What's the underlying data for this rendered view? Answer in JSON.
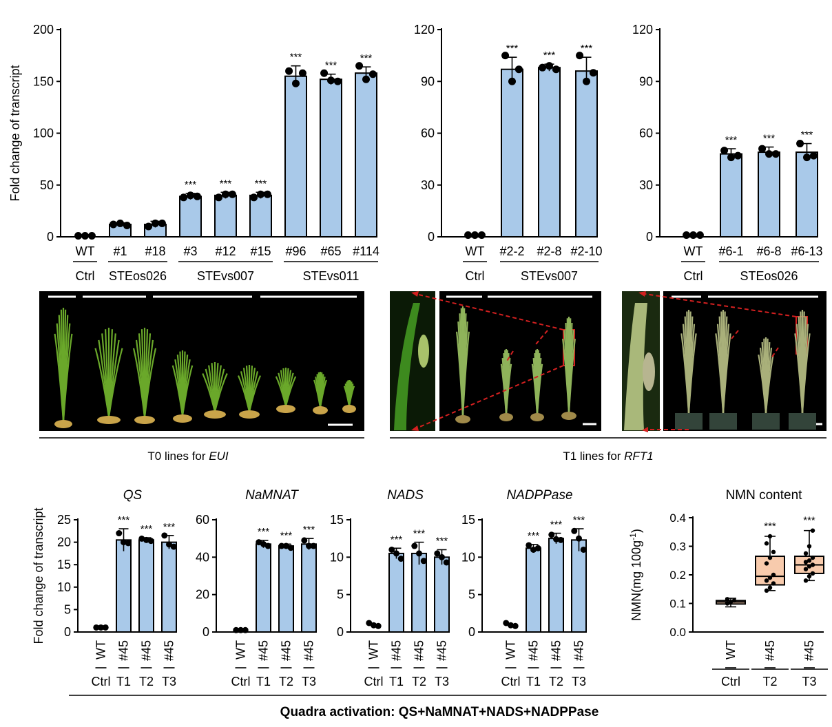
{
  "colors": {
    "bar_fill": "#a9c9e9",
    "box_fill": "#f8cbad",
    "footer_text": "#c00000",
    "scale_bar": "#ffffff",
    "arrow": "#d42020"
  },
  "chart_data": [
    {
      "id": "eui",
      "type": "bar",
      "title": "",
      "ylabel": "Fold change of transcript",
      "ylim": [
        0,
        200
      ],
      "yticks": [
        0,
        50,
        100,
        150,
        200
      ],
      "categories": [
        "WT",
        "#1",
        "#18",
        "#3",
        "#12",
        "#15",
        "#96",
        "#65",
        "#114"
      ],
      "values": [
        1,
        12,
        12,
        39,
        40,
        40,
        155,
        152,
        158
      ],
      "errors": [
        0.5,
        1.5,
        3,
        3,
        3,
        3,
        10,
        5,
        6
      ],
      "points": [
        [
          1,
          1,
          1
        ],
        [
          12,
          13,
          11
        ],
        [
          10,
          13,
          13
        ],
        [
          38,
          40,
          39
        ],
        [
          38,
          41,
          41
        ],
        [
          38,
          41,
          41
        ],
        [
          160,
          148,
          158
        ],
        [
          158,
          151,
          150
        ],
        [
          165,
          152,
          157
        ]
      ],
      "significance": [
        "",
        "",
        "",
        "***",
        "***",
        "***",
        "***",
        "***",
        "***"
      ],
      "groups": [
        {
          "label": "Ctrl",
          "span": [
            0,
            0
          ]
        },
        {
          "label": "STEos026",
          "span": [
            1,
            2
          ]
        },
        {
          "label": "STEvs007",
          "span": [
            3,
            5
          ]
        },
        {
          "label": "STEvs011",
          "span": [
            6,
            8
          ]
        }
      ]
    },
    {
      "id": "rft1-vs007",
      "type": "bar",
      "title": "",
      "ylabel": "",
      "ylim": [
        0,
        120
      ],
      "yticks": [
        0,
        30,
        60,
        90,
        120
      ],
      "categories": [
        "WT",
        "#2-2",
        "#2-8",
        "#2-10"
      ],
      "values": [
        1,
        97,
        98,
        96
      ],
      "errors": [
        0.5,
        7,
        2,
        8
      ],
      "points": [
        [
          1,
          1,
          1
        ],
        [
          105,
          90,
          97
        ],
        [
          98,
          99,
          97
        ],
        [
          105,
          90,
          95
        ]
      ],
      "significance": [
        "",
        "***",
        "***",
        "***"
      ],
      "groups": [
        {
          "label": "Ctrl",
          "span": [
            0,
            0
          ]
        },
        {
          "label": "STEvs007",
          "span": [
            1,
            3
          ]
        }
      ]
    },
    {
      "id": "rft1-os026",
      "type": "bar",
      "title": "",
      "ylabel": "",
      "ylim": [
        0,
        120
      ],
      "yticks": [
        0,
        30,
        60,
        90,
        120
      ],
      "categories": [
        "WT",
        "#6-1",
        "#6-8",
        "#6-13"
      ],
      "values": [
        1,
        48,
        49,
        49
      ],
      "errors": [
        0.5,
        3,
        3,
        5
      ],
      "points": [
        [
          1,
          1,
          1
        ],
        [
          50,
          46,
          47
        ],
        [
          51,
          48,
          48
        ],
        [
          54,
          46,
          47
        ]
      ],
      "significance": [
        "",
        "***",
        "***",
        "***"
      ],
      "groups": [
        {
          "label": "Ctrl",
          "span": [
            0,
            0
          ]
        },
        {
          "label": "STEos026",
          "span": [
            1,
            3
          ]
        }
      ]
    },
    {
      "id": "qs",
      "type": "bar",
      "title": "QS",
      "ylabel": "Fold change of transcript",
      "ylim": [
        0,
        25
      ],
      "yticks": [
        0,
        5,
        10,
        15,
        20,
        25
      ],
      "categories": [
        "WT",
        "#45",
        "#45",
        "#45"
      ],
      "values": [
        1,
        20.5,
        20.5,
        20
      ],
      "errors": [
        0.3,
        2.5,
        0.5,
        1.5
      ],
      "points": [
        [
          1,
          1,
          1
        ],
        [
          22,
          20,
          19.8
        ],
        [
          20.8,
          20.5,
          20.3
        ],
        [
          21.5,
          19.5,
          19
        ]
      ],
      "significance": [
        "",
        "***",
        "***",
        "***"
      ],
      "groups": [
        {
          "label": "Ctrl",
          "span": [
            0,
            0
          ]
        },
        {
          "label": "T1",
          "span": [
            1,
            1
          ]
        },
        {
          "label": "T2",
          "span": [
            2,
            2
          ]
        },
        {
          "label": "T3",
          "span": [
            3,
            3
          ]
        }
      ]
    },
    {
      "id": "namnat",
      "type": "bar",
      "title": "NaMNAT",
      "ylabel": "",
      "ylim": [
        0,
        60
      ],
      "yticks": [
        0,
        20,
        40,
        60
      ],
      "categories": [
        "WT",
        "#45",
        "#45",
        "#45"
      ],
      "values": [
        1,
        47,
        46,
        47
      ],
      "errors": [
        0.5,
        2,
        1,
        3
      ],
      "points": [
        [
          1,
          1,
          1
        ],
        [
          48,
          47,
          46
        ],
        [
          46,
          46,
          45
        ],
        [
          49,
          46,
          46
        ]
      ],
      "significance": [
        "",
        "***",
        "***",
        "***"
      ],
      "groups": [
        {
          "label": "Ctrl",
          "span": [
            0,
            0
          ]
        },
        {
          "label": "T1",
          "span": [
            1,
            1
          ]
        },
        {
          "label": "T2",
          "span": [
            2,
            2
          ]
        },
        {
          "label": "T3",
          "span": [
            3,
            3
          ]
        }
      ]
    },
    {
      "id": "nads",
      "type": "bar",
      "title": "NADS",
      "ylabel": "",
      "ylim": [
        0,
        15
      ],
      "yticks": [
        0,
        5,
        10,
        15
      ],
      "categories": [
        "WT",
        "#45",
        "#45",
        "#45"
      ],
      "values": [
        1,
        10.5,
        10.5,
        10
      ],
      "errors": [
        0.3,
        0.7,
        1.5,
        1
      ],
      "points": [
        [
          1.2,
          0.9,
          0.8
        ],
        [
          11,
          10.5,
          9.8
        ],
        [
          11.5,
          10.5,
          9.5
        ],
        [
          10.5,
          10,
          9.3
        ]
      ],
      "significance": [
        "",
        "***",
        "***",
        "***"
      ],
      "groups": [
        {
          "label": "Ctrl",
          "span": [
            0,
            0
          ]
        },
        {
          "label": "T1",
          "span": [
            1,
            1
          ]
        },
        {
          "label": "T2",
          "span": [
            2,
            2
          ]
        },
        {
          "label": "T3",
          "span": [
            3,
            3
          ]
        }
      ]
    },
    {
      "id": "nadppase",
      "type": "bar",
      "title": "NADPPase",
      "ylabel": "",
      "ylim": [
        0,
        15
      ],
      "yticks": [
        0,
        5,
        10,
        15
      ],
      "categories": [
        "WT",
        "#45",
        "#45",
        "#45"
      ],
      "values": [
        1,
        11.2,
        12.5,
        12.3
      ],
      "errors": [
        0.3,
        0.5,
        0.7,
        1.5
      ],
      "points": [
        [
          1.2,
          0.9,
          0.8
        ],
        [
          11.6,
          11,
          11.2
        ],
        [
          13,
          12.4,
          12.3
        ],
        [
          13.5,
          12.5,
          11
        ]
      ],
      "significance": [
        "",
        "***",
        "***",
        "***"
      ],
      "groups": [
        {
          "label": "Ctrl",
          "span": [
            0,
            0
          ]
        },
        {
          "label": "T1",
          "span": [
            1,
            1
          ]
        },
        {
          "label": "T2",
          "span": [
            2,
            2
          ]
        },
        {
          "label": "T3",
          "span": [
            3,
            3
          ]
        }
      ]
    },
    {
      "id": "nmn",
      "type": "box",
      "title": "NMN content",
      "ylabel": "NMN(mg 100g",
      "ylabel_sup": "-1",
      "ylabel_close": ")",
      "ylim": [
        0,
        0.4
      ],
      "yticks": [
        "0.0",
        "0.1",
        "0.2",
        "0.3",
        "0.4"
      ],
      "categories": [
        "WT",
        "#45",
        "#45"
      ],
      "boxes": [
        {
          "min": 0.088,
          "q1": 0.098,
          "median": 0.105,
          "q3": 0.11,
          "max": 0.118
        },
        {
          "min": 0.145,
          "q1": 0.165,
          "median": 0.195,
          "q3": 0.265,
          "max": 0.335
        },
        {
          "min": 0.18,
          "q1": 0.205,
          "median": 0.235,
          "q3": 0.265,
          "max": 0.355
        }
      ],
      "points": [
        [
          0.1,
          0.105,
          0.11,
          0.115
        ],
        [
          0.145,
          0.155,
          0.17,
          0.18,
          0.19,
          0.2,
          0.24,
          0.26,
          0.28,
          0.31,
          0.335
        ],
        [
          0.18,
          0.195,
          0.205,
          0.22,
          0.23,
          0.235,
          0.245,
          0.25,
          0.26,
          0.275,
          0.3,
          0.355
        ]
      ],
      "significance": [
        "",
        "***",
        "***"
      ],
      "groups": [
        {
          "label": "Ctrl",
          "span": [
            0,
            0
          ]
        },
        {
          "label": "T2",
          "span": [
            1,
            1
          ]
        },
        {
          "label": "T3",
          "span": [
            2,
            2
          ]
        }
      ]
    }
  ],
  "photos": {
    "left_caption_prefix": "T0 lines for ",
    "left_caption_gene": "EUI",
    "right_caption_prefix": "T1 lines for ",
    "right_caption_gene": "RFT1"
  },
  "footer": "Quadra activation: QS+NaMNAT+NADS+NADPPase"
}
